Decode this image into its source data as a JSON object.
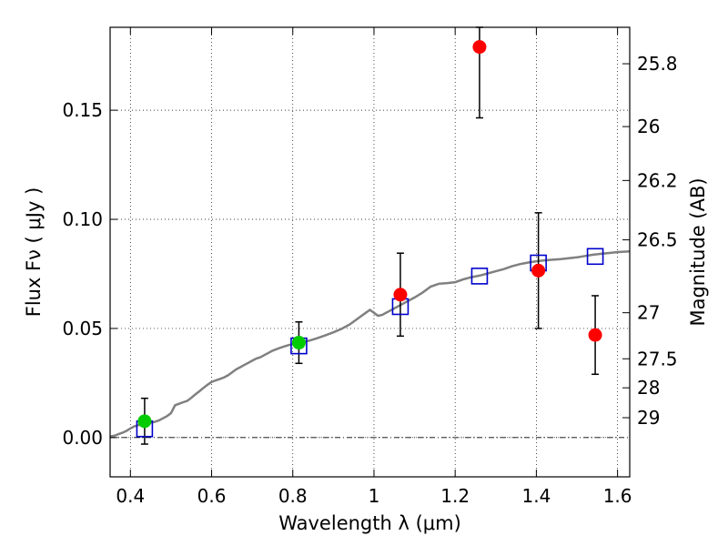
{
  "chart_data": {
    "type": "scatter",
    "xlabel": "Wavelength  λ (μm)",
    "ylabel": "Flux  Fν ( μJy )",
    "ylabel_right": "Magnitude (AB)",
    "xlim": [
      0.35,
      1.63
    ],
    "ylim": [
      -0.018,
      0.188
    ],
    "grid": true,
    "x_ticks": [
      {
        "value": 0.4,
        "label": "0.4"
      },
      {
        "value": 0.6,
        "label": "0.6"
      },
      {
        "value": 0.8,
        "label": "0.8"
      },
      {
        "value": 1.0,
        "label": "1"
      },
      {
        "value": 1.2,
        "label": "1.2"
      },
      {
        "value": 1.4,
        "label": "1.4"
      },
      {
        "value": 1.6,
        "label": "1.6"
      }
    ],
    "y_ticks": [
      {
        "value": 0.0,
        "label": "0.00"
      },
      {
        "value": 0.05,
        "label": "0.05"
      },
      {
        "value": 0.1,
        "label": "0.10"
      },
      {
        "value": 0.15,
        "label": "0.15"
      }
    ],
    "right_ticks": [
      {
        "flux": 0.1713,
        "label": "25.8"
      },
      {
        "flux": 0.1425,
        "label": "26"
      },
      {
        "flux": 0.1178,
        "label": "26.2"
      },
      {
        "flux": 0.0906,
        "label": "26.5"
      },
      {
        "flux": 0.0572,
        "label": "27"
      },
      {
        "flux": 0.0361,
        "label": "27.5"
      },
      {
        "flux": 0.0228,
        "label": "28"
      },
      {
        "flux": 0.0091,
        "label": "29"
      }
    ],
    "series": [
      {
        "kind": "model-spectrum",
        "color": "#808080",
        "points": [
          [
            0.35,
            0.0005
          ],
          [
            0.36,
            0.0008
          ],
          [
            0.37,
            0.0015
          ],
          [
            0.38,
            0.0022
          ],
          [
            0.39,
            0.003
          ],
          [
            0.4,
            0.0042
          ],
          [
            0.41,
            0.0052
          ],
          [
            0.42,
            0.0057
          ],
          [
            0.43,
            0.0062
          ],
          [
            0.44,
            0.0065
          ],
          [
            0.45,
            0.0068
          ],
          [
            0.46,
            0.0072
          ],
          [
            0.47,
            0.0078
          ],
          [
            0.48,
            0.0088
          ],
          [
            0.49,
            0.0098
          ],
          [
            0.5,
            0.0112
          ],
          [
            0.51,
            0.0148
          ],
          [
            0.52,
            0.0155
          ],
          [
            0.53,
            0.0162
          ],
          [
            0.54,
            0.0168
          ],
          [
            0.55,
            0.0182
          ],
          [
            0.56,
            0.0198
          ],
          [
            0.57,
            0.0212
          ],
          [
            0.58,
            0.0228
          ],
          [
            0.59,
            0.0242
          ],
          [
            0.6,
            0.0255
          ],
          [
            0.61,
            0.0262
          ],
          [
            0.62,
            0.0268
          ],
          [
            0.63,
            0.0275
          ],
          [
            0.64,
            0.0285
          ],
          [
            0.65,
            0.0298
          ],
          [
            0.66,
            0.0312
          ],
          [
            0.67,
            0.0322
          ],
          [
            0.68,
            0.0332
          ],
          [
            0.69,
            0.0342
          ],
          [
            0.7,
            0.0352
          ],
          [
            0.71,
            0.0362
          ],
          [
            0.72,
            0.0368
          ],
          [
            0.73,
            0.0378
          ],
          [
            0.74,
            0.0388
          ],
          [
            0.75,
            0.0398
          ],
          [
            0.76,
            0.0405
          ],
          [
            0.77,
            0.0412
          ],
          [
            0.78,
            0.0418
          ],
          [
            0.79,
            0.0424
          ],
          [
            0.8,
            0.0428
          ],
          [
            0.82,
            0.0436
          ],
          [
            0.84,
            0.0444
          ],
          [
            0.86,
            0.0455
          ],
          [
            0.88,
            0.0468
          ],
          [
            0.9,
            0.0482
          ],
          [
            0.92,
            0.0498
          ],
          [
            0.94,
            0.0518
          ],
          [
            0.96,
            0.0545
          ],
          [
            0.98,
            0.0572
          ],
          [
            0.99,
            0.0585
          ],
          [
            1.0,
            0.0572
          ],
          [
            1.01,
            0.0558
          ],
          [
            1.02,
            0.0562
          ],
          [
            1.03,
            0.0572
          ],
          [
            1.04,
            0.0582
          ],
          [
            1.05,
            0.0592
          ],
          [
            1.06,
            0.0602
          ],
          [
            1.08,
            0.0622
          ],
          [
            1.1,
            0.0642
          ],
          [
            1.12,
            0.0665
          ],
          [
            1.14,
            0.0692
          ],
          [
            1.16,
            0.0705
          ],
          [
            1.18,
            0.0708
          ],
          [
            1.2,
            0.0712
          ],
          [
            1.22,
            0.0725
          ],
          [
            1.24,
            0.0735
          ],
          [
            1.26,
            0.0742
          ],
          [
            1.28,
            0.0752
          ],
          [
            1.3,
            0.0762
          ],
          [
            1.32,
            0.0772
          ],
          [
            1.34,
            0.0785
          ],
          [
            1.36,
            0.0795
          ],
          [
            1.38,
            0.0802
          ],
          [
            1.4,
            0.0808
          ],
          [
            1.42,
            0.0812
          ],
          [
            1.44,
            0.0815
          ],
          [
            1.46,
            0.0818
          ],
          [
            1.48,
            0.0822
          ],
          [
            1.5,
            0.0826
          ],
          [
            1.52,
            0.0832
          ],
          [
            1.54,
            0.0838
          ],
          [
            1.56,
            0.0842
          ],
          [
            1.58,
            0.0846
          ],
          [
            1.6,
            0.085
          ],
          [
            1.62,
            0.0852
          ],
          [
            1.63,
            0.0853
          ]
        ]
      },
      {
        "kind": "model-photometry",
        "color": "#0000cc",
        "marker": "open-square",
        "x": [
          0.435,
          0.815,
          1.065,
          1.26,
          1.405,
          1.545
        ],
        "y": [
          0.004,
          0.042,
          0.06,
          0.074,
          0.08,
          0.083
        ]
      },
      {
        "kind": "observed-detections",
        "color": "#00cc00",
        "marker": "filled-circle",
        "x": [
          0.435,
          0.815
        ],
        "y": [
          0.0075,
          0.0435
        ],
        "err": [
          0.0105,
          0.0095
        ]
      },
      {
        "kind": "observed-nondetections",
        "color": "#ff0000",
        "marker": "filled-circle",
        "x": [
          1.065,
          1.26,
          1.405,
          1.545
        ],
        "y": [
          0.0655,
          0.179,
          0.0765,
          0.047
        ],
        "err": [
          0.019,
          0.0325,
          0.0265,
          0.018
        ]
      }
    ]
  }
}
